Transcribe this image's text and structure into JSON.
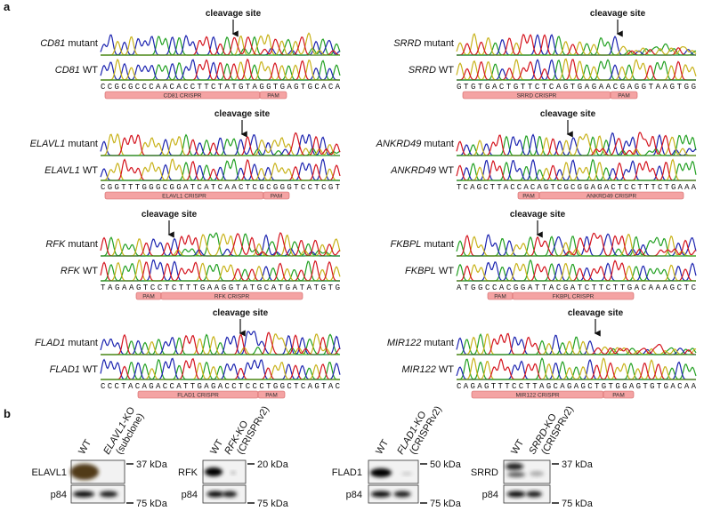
{
  "panel_a": {
    "label": "a",
    "panels": [
      {
        "gene": "CD81",
        "mutant_label": "mutant",
        "wt_label": "WT",
        "cleavage": "cleavage site",
        "sequence": "CCGCGCCCAACACCTTCTATGTAGGTGAGTGCACA",
        "crispr": "CD81 CRISPR",
        "pam": "PAM"
      },
      {
        "gene": "SRRD",
        "mutant_label": "mutant",
        "wt_label": "WT",
        "cleavage": "cleavage site",
        "sequence": "GTGTGACTGTTCTCAGTGAGAACGAGGTAAGTGG",
        "crispr": "SRRD CRISPR",
        "pam": "PAM"
      },
      {
        "gene": "ELAVL1",
        "mutant_label": "mutant",
        "wt_label": "WT",
        "cleavage": "cleavage site",
        "sequence": "CGGTTTGGGCGGATCATCAACTCGCGGGTCCTCGT",
        "crispr": "ELAVL1 CRISPR",
        "pam": "PAM"
      },
      {
        "gene": "ANKRD49",
        "mutant_label": "mutant",
        "wt_label": "WT",
        "cleavage": "cleavage site",
        "sequence": "TCAGCTTACCACAGTCGCGGAGACTCCTTTCTGAAA",
        "crispr": "ANKRD49 CRISPR",
        "pam": "PAM"
      },
      {
        "gene": "RFK",
        "mutant_label": "mutant",
        "wt_label": "WT",
        "cleavage": "cleavage site",
        "sequence": "TAGAAGTCCTCTTTGAAGGTATGCATGATATGTG",
        "crispr": "RFK CRISPR",
        "pam": "PAM"
      },
      {
        "gene": "FKBPL",
        "mutant_label": "mutant",
        "wt_label": "WT",
        "cleavage": "cleavage site",
        "sequence": "ATGGCCACGGATTACGATCTTCTTGACAAAGCTC",
        "crispr": "FKBPL CRISPR",
        "pam": "PAM"
      },
      {
        "gene": "FLAD1",
        "mutant_label": "mutant",
        "wt_label": "WT",
        "cleavage": "cleavage site",
        "sequence": "CCCTACAGACCATTGAGACCTCCCTGGCTCAGTAC",
        "crispr": "FLAD1 CRISPR",
        "pam": "PAM"
      },
      {
        "gene": "MIR122",
        "mutant_label": "mutant",
        "wt_label": "WT",
        "cleavage": "cleavage site",
        "sequence": "CAGAGTTTCCTTAGCAGAGCTGTGGAGTGTGACAA",
        "crispr": "MIR122 CRISPR",
        "pam": "PAM"
      }
    ]
  },
  "panel_b": {
    "label": "b",
    "blots": [
      {
        "wt": "WT",
        "ko_gene": "ELAVL1",
        "ko_suffix": "-KO",
        "ko_note": "(subclone)",
        "protein": "ELAVL1",
        "loading": "p84",
        "marker_top": "37 kDa",
        "marker_bottom": "75 kDa"
      },
      {
        "wt": "WT",
        "ko_gene": "RFK",
        "ko_suffix": "-KO",
        "ko_note": "(CRISPRv2)",
        "protein": "RFK",
        "loading": "p84",
        "marker_top": "20 kDa",
        "marker_bottom": "75 kDa"
      },
      {
        "wt": "WT",
        "ko_gene": "FLAD1",
        "ko_suffix": "-KO",
        "ko_note": "(CRISPRv2)",
        "protein": "FLAD1",
        "loading": "p84",
        "marker_top": "50 kDa",
        "marker_bottom": "75 kDa"
      },
      {
        "wt": "WT",
        "ko_gene": "SRRD",
        "ko_suffix": "-KO",
        "ko_note": "(CRISPRv2)",
        "protein": "SRRD",
        "loading": "p84",
        "marker_top": "37 kDa",
        "marker_bottom": "75 kDa"
      }
    ]
  }
}
